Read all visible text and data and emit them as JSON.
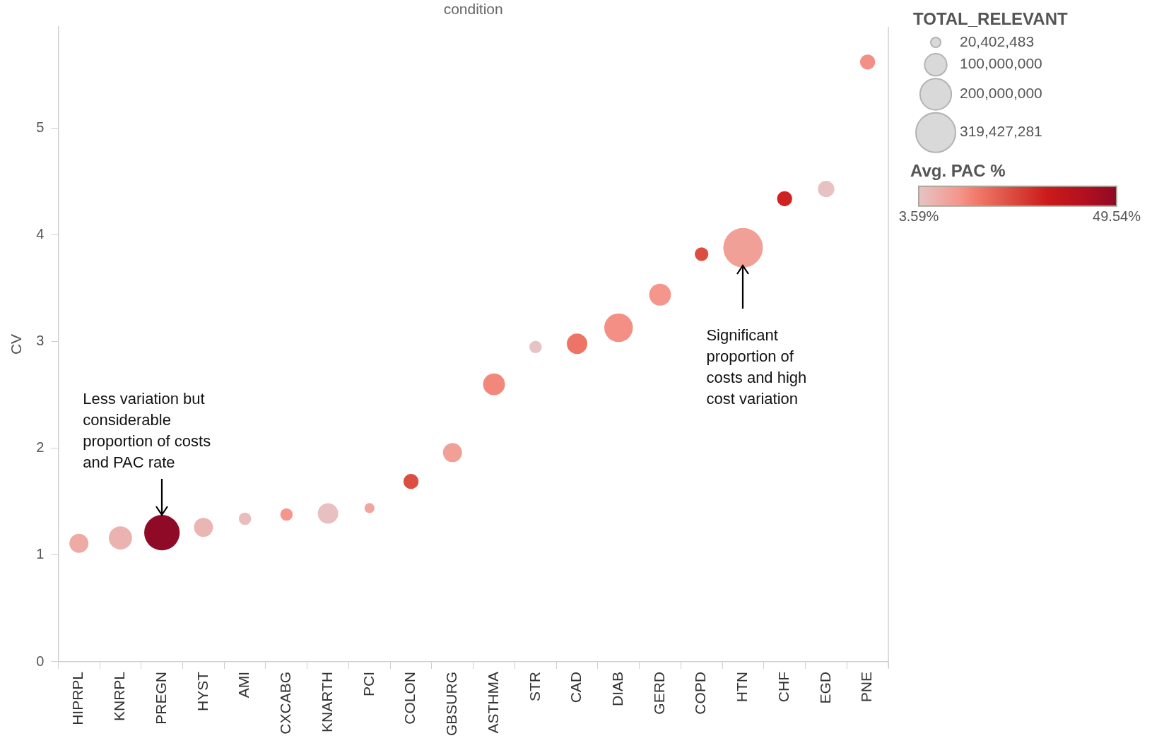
{
  "chart_data": {
    "type": "bubble",
    "xlabel": "condition",
    "ylabel": "CV",
    "categories": [
      "HIPRPL",
      "KNRPL",
      "PREGN",
      "HYST",
      "AMI",
      "CXCABG",
      "KNARTH",
      "PCI",
      "COLON",
      "GBSURG",
      "ASTHMA",
      "STR",
      "CAD",
      "DIAB",
      "GERD",
      "COPD",
      "HTN",
      "CHF",
      "EGD",
      "PNE"
    ],
    "values": [
      1.11,
      1.16,
      1.21,
      1.26,
      1.34,
      1.38,
      1.39,
      1.44,
      1.69,
      1.96,
      2.6,
      2.95,
      2.98,
      3.13,
      3.44,
      3.82,
      3.88,
      4.34,
      4.43,
      5.62
    ],
    "sizes": [
      74000000,
      110000000,
      257000000,
      74000000,
      31000000,
      31000000,
      85000000,
      20402483,
      46000000,
      74000000,
      97000000,
      31000000,
      85000000,
      167000000,
      97000000,
      38000000,
      319427281,
      46000000,
      55000000,
      46000000
    ],
    "cvalues": [
      9,
      7,
      49.54,
      6.5,
      5,
      13,
      4.5,
      10,
      25,
      11,
      15,
      3.59,
      18,
      14,
      13,
      25,
      11,
      32,
      4,
      14
    ],
    "legend_title": "TOTAL_RELEVANT",
    "size_legend": [
      {
        "value": 20402483,
        "label": "20,402,483"
      },
      {
        "value": 100000000,
        "label": "100,000,000"
      },
      {
        "value": 200000000,
        "label": "200,000,000"
      },
      {
        "value": 319427281,
        "label": "319,427,281"
      }
    ],
    "clabel": "Avg. PAC %",
    "clim": [
      3.59,
      49.54
    ],
    "cticks": [
      {
        "value": 3.59,
        "label": "3.59%"
      },
      {
        "value": 49.54,
        "label": "49.54%"
      }
    ],
    "ylim": [
      0,
      5.95
    ],
    "yticks": [
      0,
      1,
      2,
      3,
      4,
      5
    ],
    "annotations": [
      {
        "text": "Less variation but considerable proportion of costs and PAC rate",
        "x": "PREGN",
        "y": 1.37
      },
      {
        "text": "Significant proportion of costs and high cost variation",
        "x": "HTN",
        "y": 3.72
      }
    ]
  }
}
